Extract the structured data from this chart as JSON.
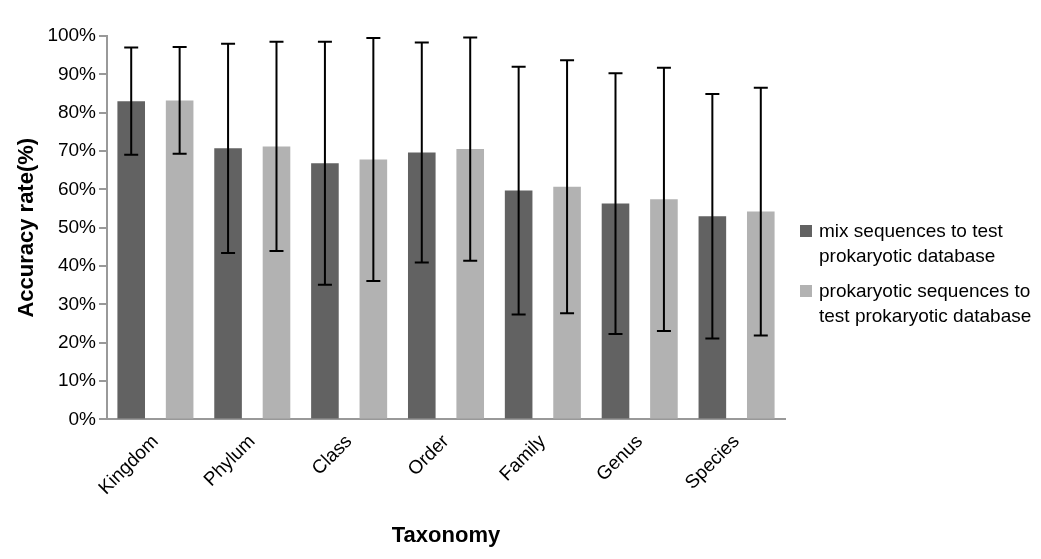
{
  "chart_data": {
    "type": "bar",
    "xlabel": "Taxonomy",
    "ylabel": "Accuracy rate(%)",
    "categories": [
      "Kingdom",
      "Phylum",
      "Class",
      "Order",
      "Family",
      "Genus",
      "Species"
    ],
    "series": [
      {
        "name": "mix sequences to test prokaryotic database",
        "color": "#626262",
        "values": [
          83,
          70.7,
          66.8,
          69.6,
          59.7,
          56.3,
          53
        ],
        "errors": [
          14,
          27.3,
          31.7,
          28.7,
          32.3,
          34,
          31.9
        ]
      },
      {
        "name": "prokaryotic sequences to test prokaryotic database",
        "color": "#b2b2b2",
        "values": [
          83.2,
          71.2,
          67.8,
          70.5,
          60.7,
          57.4,
          54.2
        ],
        "errors": [
          13.9,
          27.3,
          31.7,
          29.1,
          33,
          34.3,
          32.3
        ]
      }
    ],
    "ylim": [
      0,
      100
    ],
    "yticks": [
      {
        "value": 0,
        "label": "0%"
      },
      {
        "value": 10,
        "label": "10%"
      },
      {
        "value": 20,
        "label": "20%"
      },
      {
        "value": 30,
        "label": "30%"
      },
      {
        "value": 40,
        "label": "40%"
      },
      {
        "value": 50,
        "label": "50%"
      },
      {
        "value": 60,
        "label": "60%"
      },
      {
        "value": 70,
        "label": "70%"
      },
      {
        "value": 80,
        "label": "80%"
      },
      {
        "value": 90,
        "label": "90%"
      },
      {
        "value": 100,
        "label": "100%"
      }
    ],
    "grid": false,
    "legend": "right"
  }
}
